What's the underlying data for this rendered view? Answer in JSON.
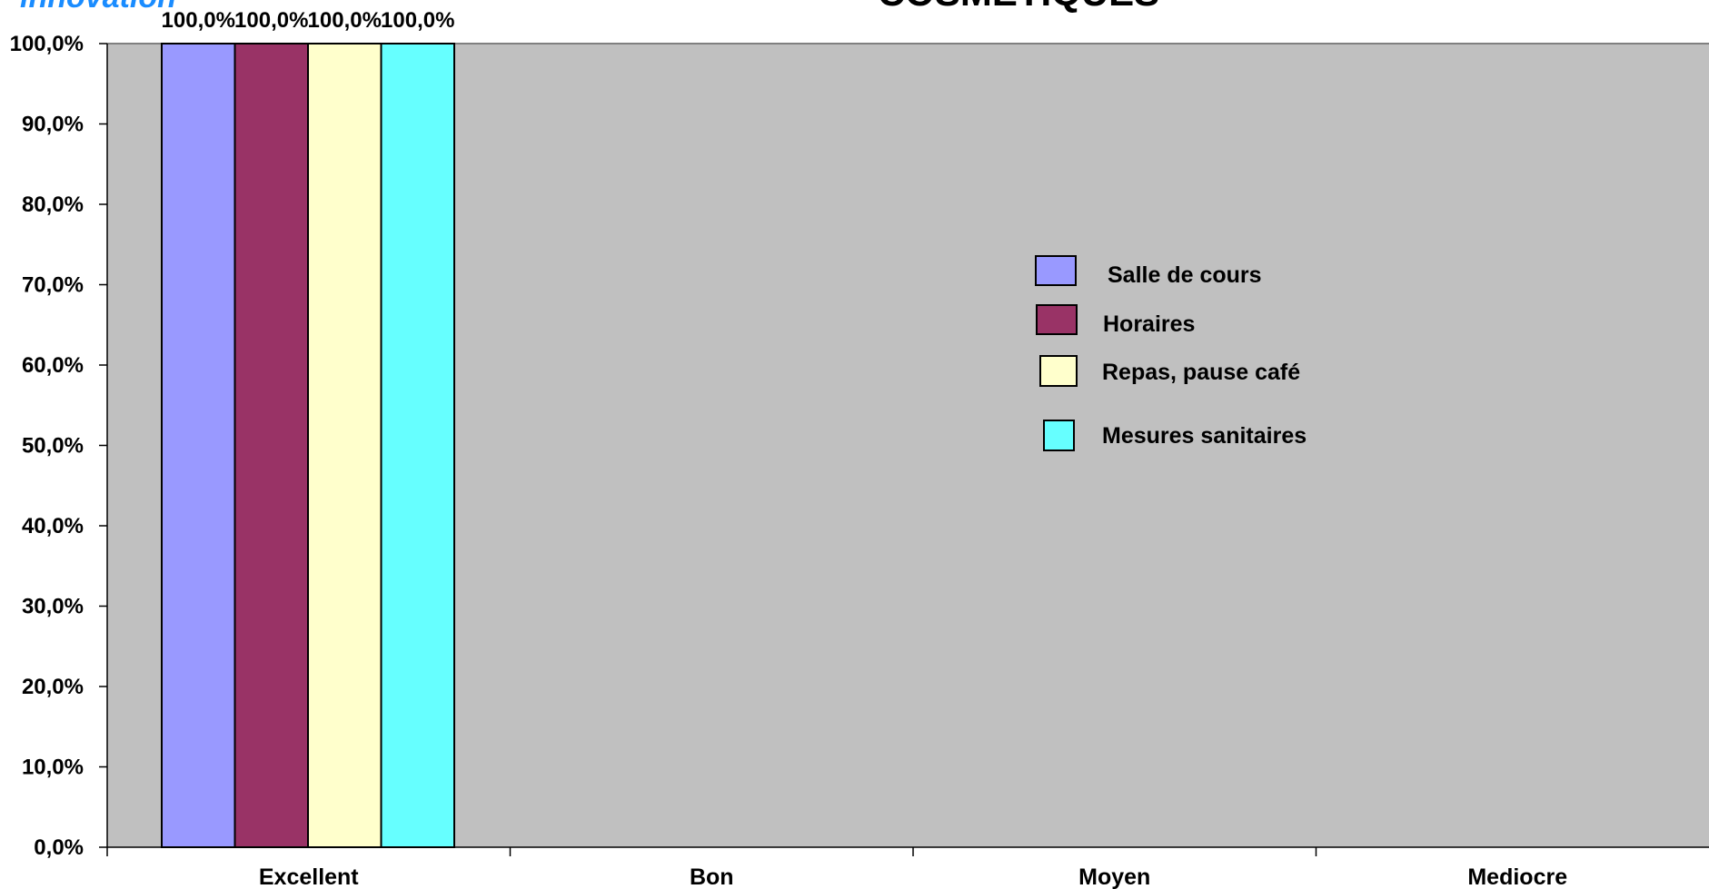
{
  "header": {
    "brand_partial": "innovation",
    "title_partial": "COSMETIQUES"
  },
  "chart_data": {
    "type": "bar",
    "categories": [
      "Excellent",
      "Bon",
      "Moyen",
      "Mediocre"
    ],
    "series": [
      {
        "name": "Salle de cours",
        "color": "#9999ff",
        "values": [
          100.0,
          0,
          0,
          0
        ]
      },
      {
        "name": "Horaires",
        "color": "#993366",
        "values": [
          100.0,
          0,
          0,
          0
        ]
      },
      {
        "name": "Repas, pause café",
        "color": "#ffffcc",
        "values": [
          100.0,
          0,
          0,
          0
        ]
      },
      {
        "name": "Mesures sanitaires",
        "color": "#66ffff",
        "values": [
          100.0,
          0,
          0,
          0
        ]
      }
    ],
    "data_labels": [
      "100,0%",
      "100,0%",
      "100,0%",
      "100,0%"
    ],
    "y_ticks": [
      "0,0%",
      "10,0%",
      "20,0%",
      "30,0%",
      "40,0%",
      "50,0%",
      "60,0%",
      "70,0%",
      "80,0%",
      "90,0%",
      "100,0%"
    ],
    "ylim": [
      0,
      100
    ],
    "plot_background": "#c0c0c0",
    "grid": false,
    "legend_position": "center-right"
  }
}
